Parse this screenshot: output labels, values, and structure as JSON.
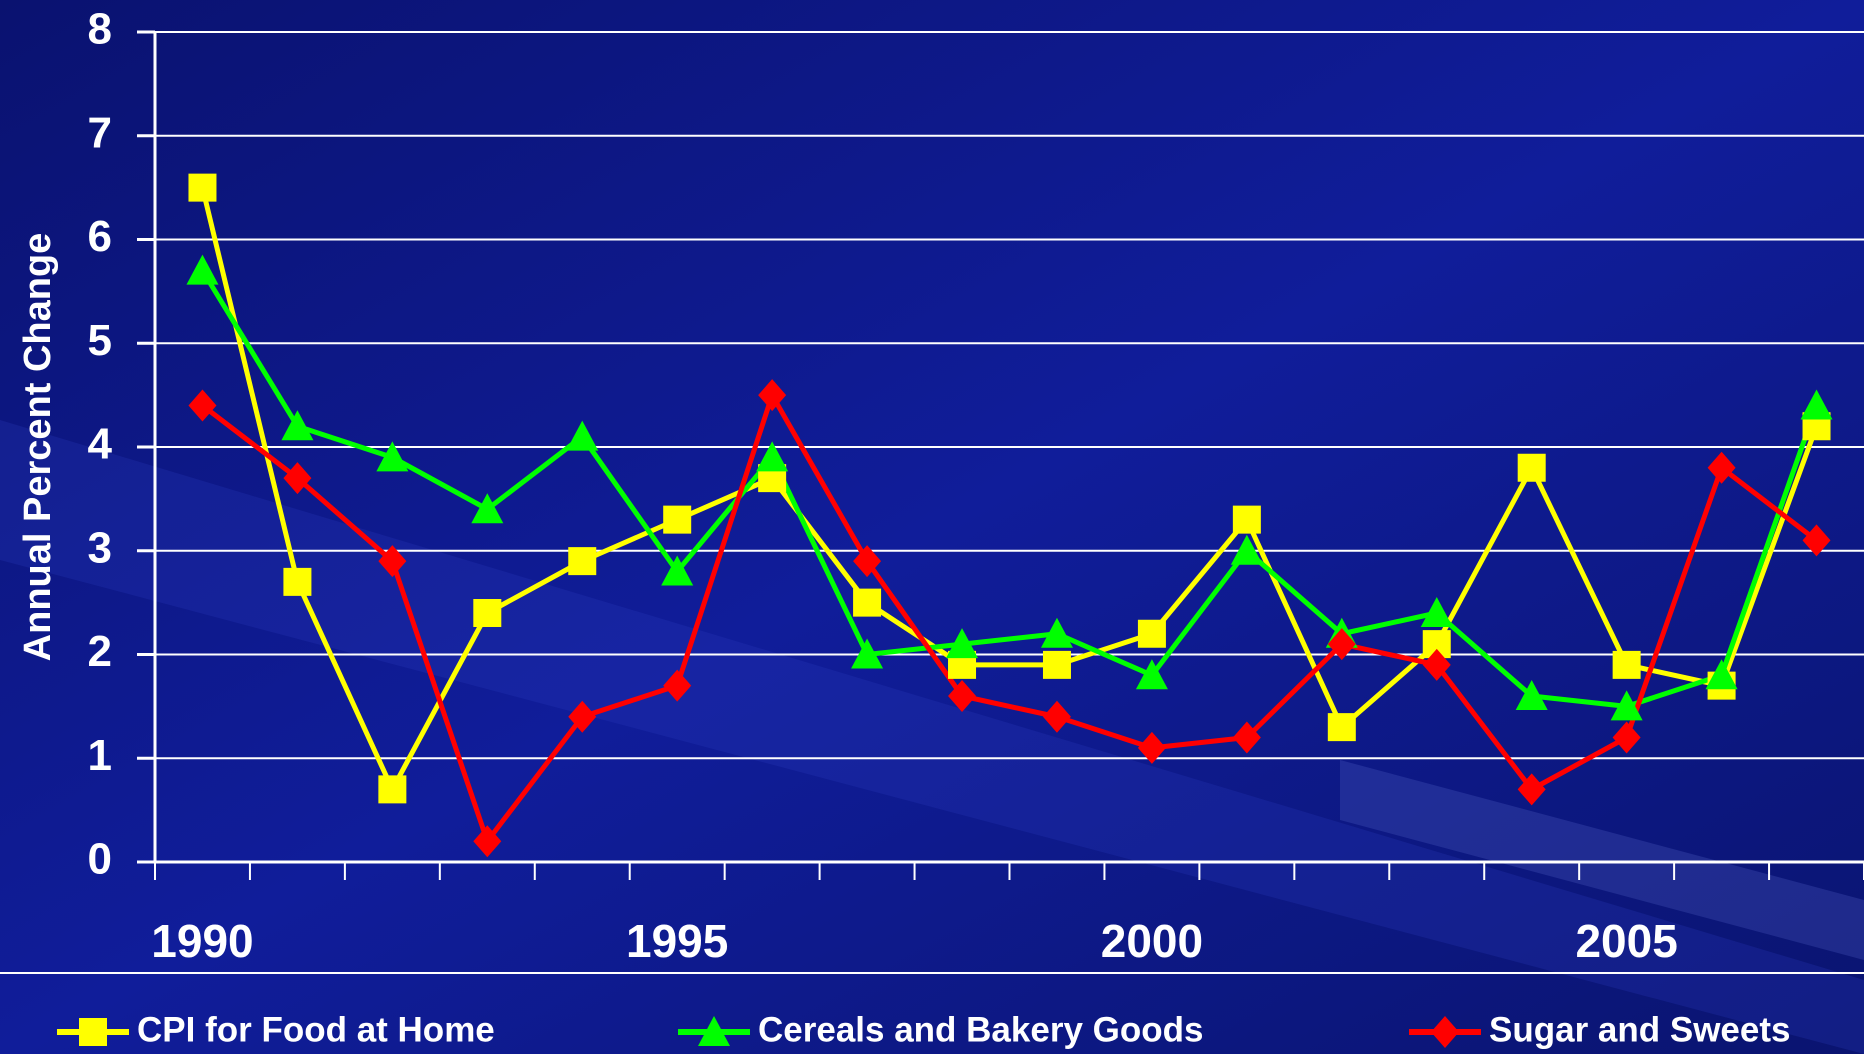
{
  "chart_data": {
    "type": "line",
    "y_label": "Annual Percent Change",
    "x": [
      1990,
      1991,
      1992,
      1993,
      1994,
      1995,
      1996,
      1997,
      1998,
      1999,
      2000,
      2001,
      2002,
      2003,
      2004,
      2005,
      2006,
      2007
    ],
    "xlim": [
      1989.5,
      2007.5
    ],
    "xticks": [
      1990,
      1995,
      2000,
      2005
    ],
    "ylim": [
      0,
      8
    ],
    "yticks": [
      0,
      1,
      2,
      3,
      4,
      5,
      6,
      7,
      8
    ],
    "grid": true,
    "legend": "bottom",
    "series": [
      {
        "name": "CPI for Food at Home",
        "color": "#ffff00",
        "marker": "square",
        "values": [
          6.5,
          2.7,
          0.7,
          2.4,
          2.9,
          3.3,
          3.7,
          2.5,
          1.9,
          1.9,
          2.2,
          3.3,
          1.3,
          2.1,
          3.8,
          1.9,
          1.7,
          4.2
        ]
      },
      {
        "name": "Cereals and Bakery Goods",
        "color": "#00ff00",
        "marker": "triangle",
        "values": [
          5.7,
          4.2,
          3.9,
          3.4,
          4.1,
          2.8,
          3.9,
          2.0,
          2.1,
          2.2,
          1.8,
          3.0,
          2.2,
          2.4,
          1.6,
          1.5,
          1.8,
          4.4
        ]
      },
      {
        "name": "Sugar and Sweets",
        "color": "#ff0000",
        "marker": "diamond",
        "values": [
          4.4,
          3.7,
          2.9,
          0.2,
          1.4,
          1.7,
          4.5,
          2.9,
          1.6,
          1.4,
          1.1,
          1.2,
          2.1,
          1.9,
          0.7,
          1.2,
          3.8,
          3.1
        ]
      }
    ]
  }
}
